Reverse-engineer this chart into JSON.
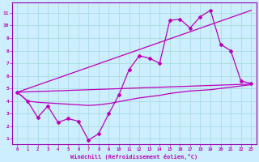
{
  "xlabel": "Windchill (Refroidissement éolien,°C)",
  "bg_color": "#cceeff",
  "grid_color": "#aadddd",
  "line_color": "#bb00bb",
  "spine_color": "#9900aa",
  "xlim": [
    -0.5,
    23.5
  ],
  "ylim": [
    0.6,
    11.8
  ],
  "xticks": [
    0,
    1,
    2,
    3,
    4,
    5,
    6,
    7,
    8,
    9,
    10,
    11,
    12,
    13,
    14,
    15,
    16,
    17,
    18,
    19,
    20,
    21,
    22,
    23
  ],
  "yticks": [
    1,
    2,
    3,
    4,
    5,
    6,
    7,
    8,
    9,
    10,
    11
  ],
  "series1_x": [
    0,
    1,
    2,
    3,
    4,
    5,
    6,
    7,
    8,
    9,
    10,
    11,
    12,
    13,
    14,
    15,
    16,
    17,
    18,
    19,
    20,
    21,
    22,
    23
  ],
  "series1_y": [
    4.7,
    4.0,
    2.7,
    3.6,
    2.3,
    2.6,
    2.4,
    0.9,
    1.4,
    3.0,
    4.5,
    6.5,
    7.6,
    7.4,
    7.0,
    10.4,
    10.5,
    9.8,
    10.7,
    11.2,
    8.5,
    8.0,
    5.6,
    5.4
  ],
  "series2_x": [
    0,
    23
  ],
  "series2_y": [
    4.7,
    5.35
  ],
  "series3_x": [
    0,
    23
  ],
  "series3_y": [
    4.7,
    11.2
  ],
  "series4_x": [
    0,
    1,
    2,
    3,
    4,
    5,
    6,
    7,
    8,
    9,
    10,
    11,
    12,
    13,
    14,
    15,
    16,
    17,
    18,
    19,
    20,
    21,
    22,
    23
  ],
  "series4_y": [
    4.7,
    4.0,
    3.9,
    3.85,
    3.8,
    3.75,
    3.7,
    3.65,
    3.7,
    3.8,
    3.95,
    4.1,
    4.25,
    4.35,
    4.45,
    4.6,
    4.7,
    4.8,
    4.85,
    4.9,
    5.0,
    5.1,
    5.2,
    5.3
  ],
  "marker": "D",
  "markersize": 2.0,
  "linewidth": 0.9
}
